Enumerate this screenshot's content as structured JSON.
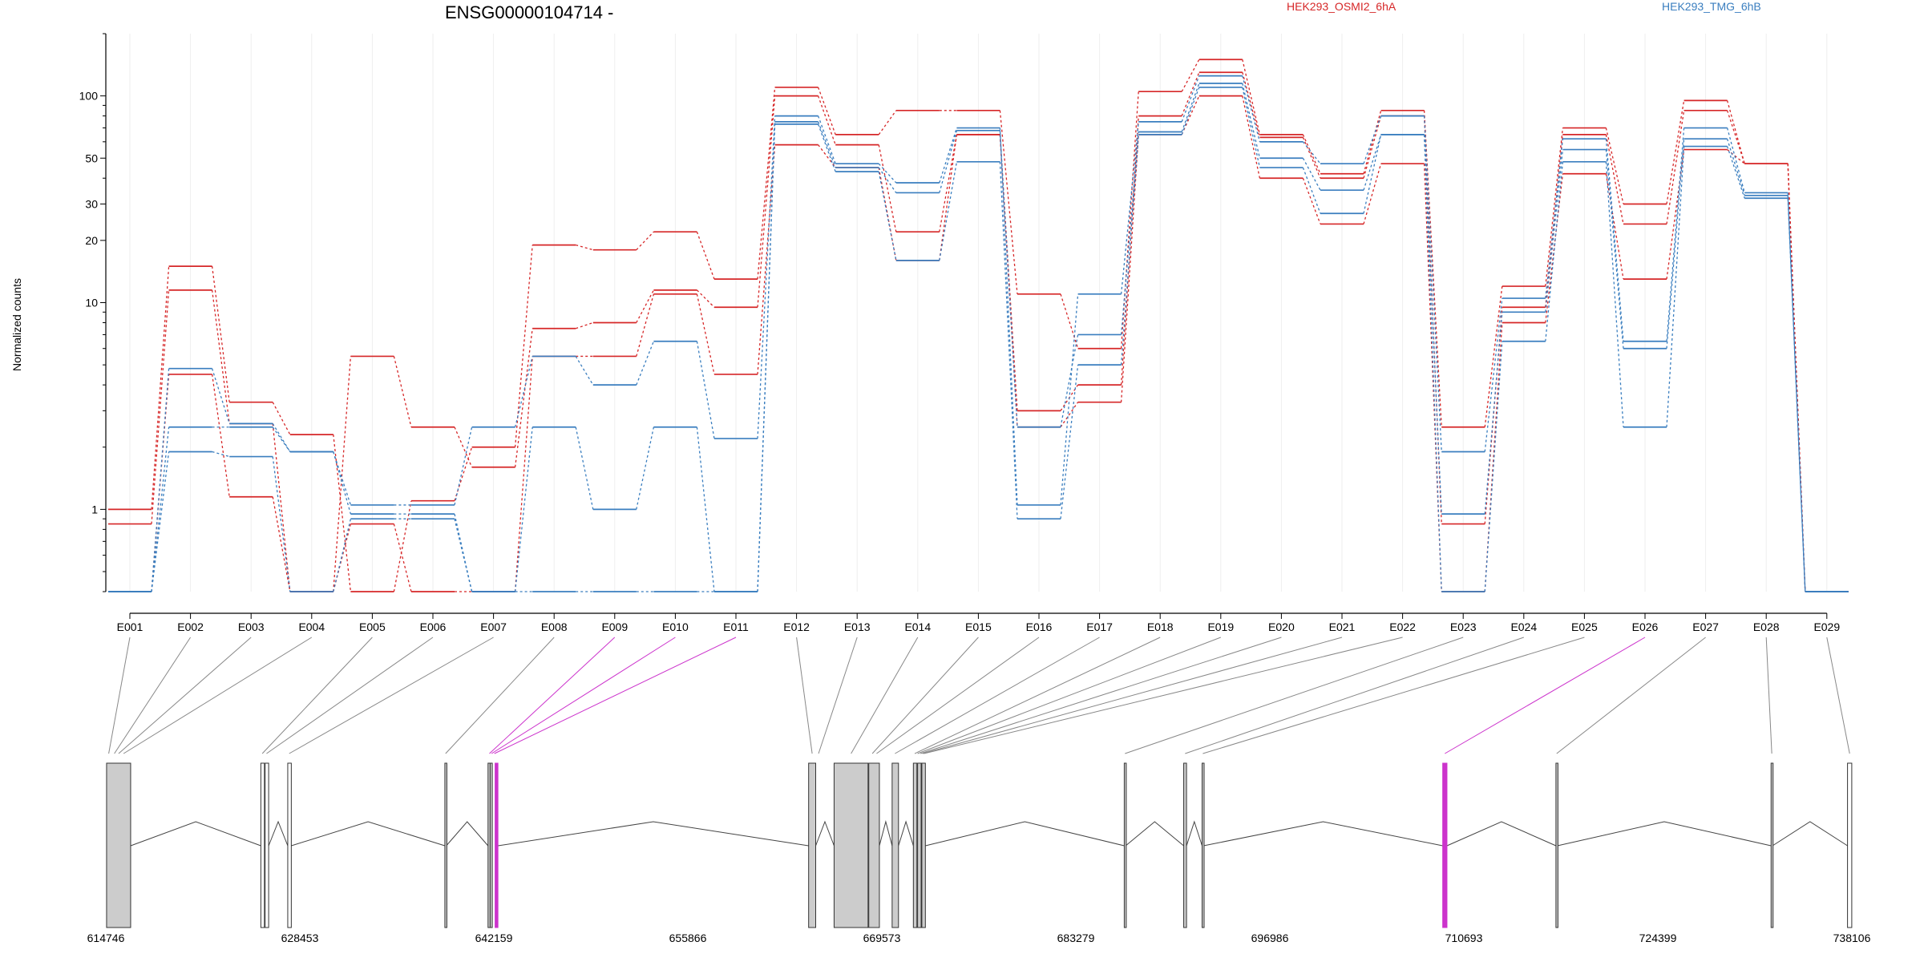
{
  "figure": {
    "title": "ENSG00000104714 -",
    "legend": [
      {
        "label": "HEK293_OSMI2_6hA",
        "color": "#d62728"
      },
      {
        "label": "HEK293_TMG_6hB",
        "color": "#3a7ebf"
      }
    ],
    "highlight_color": "#cc33cc"
  },
  "chart_data": {
    "type": "line",
    "title": "ENSG00000104714 -",
    "ylabel": "Normalized counts",
    "yscale": "log",
    "ylim": [
      0.4,
      200
    ],
    "yticks": [
      1,
      10,
      20,
      30,
      50,
      100
    ],
    "categories": [
      "E001",
      "E002",
      "E003",
      "E004",
      "E005",
      "E006",
      "E007",
      "E008",
      "E009",
      "E010",
      "E011",
      "E012",
      "E013",
      "E014",
      "E015",
      "E016",
      "E017",
      "E018",
      "E019",
      "E020",
      "E021",
      "E022",
      "E023",
      "E024",
      "E025",
      "E026",
      "E027",
      "E028",
      "E029"
    ],
    "series": [
      {
        "name": "HEK293_OSMI2_6hA",
        "color": "#d62728",
        "values": [
          1.0,
          15.0,
          3.3,
          2.3,
          0.4,
          1.1,
          2.0,
          19.0,
          18.0,
          22.0,
          13.0,
          110,
          65,
          85,
          85,
          11.0,
          6.0,
          105,
          150,
          65,
          42,
          85,
          2.5,
          12.0,
          70,
          30,
          95,
          47,
          0.4
        ]
      },
      {
        "name": "HEK293_OSMI2_6hA",
        "color": "#d62728",
        "values": [
          0.85,
          11.5,
          2.6,
          0.4,
          5.5,
          2.5,
          1.6,
          7.5,
          8.0,
          11.5,
          9.5,
          100,
          58,
          22,
          65,
          3.0,
          4.0,
          80,
          130,
          63,
          40,
          80,
          0.85,
          9.5,
          65,
          24,
          85,
          47,
          0.4
        ]
      },
      {
        "name": "HEK293_OSMI2_6hA",
        "color": "#d62728",
        "values": [
          0.4,
          4.5,
          1.15,
          0.4,
          0.85,
          0.4,
          0.4,
          5.5,
          5.5,
          11.0,
          4.5,
          58,
          45,
          16,
          65,
          2.5,
          3.3,
          65,
          100,
          40,
          24,
          47,
          0.4,
          8.0,
          42,
          13.0,
          55,
          47,
          0.4
        ]
      },
      {
        "name": "HEK293_TMG_6hB",
        "color": "#3a7ebf",
        "values": [
          0.4,
          4.8,
          2.6,
          1.9,
          1.05,
          1.05,
          2.5,
          5.5,
          4.0,
          6.5,
          2.2,
          80,
          47,
          38,
          70,
          1.05,
          11.0,
          75,
          125,
          60,
          47,
          80,
          1.9,
          10.5,
          62,
          6.5,
          70,
          34,
          0.4
        ]
      },
      {
        "name": "HEK293_TMG_6hB",
        "color": "#3a7ebf",
        "values": [
          0.4,
          2.5,
          2.5,
          1.9,
          0.95,
          0.95,
          0.4,
          2.5,
          1.0,
          2.5,
          0.4,
          75,
          45,
          34,
          68,
          2.5,
          7.0,
          67,
          115,
          50,
          35,
          65,
          0.95,
          9.0,
          55,
          6.0,
          62,
          33,
          0.4
        ]
      },
      {
        "name": "HEK293_TMG_6hB",
        "color": "#3a7ebf",
        "values": [
          0.4,
          1.9,
          1.8,
          0.4,
          0.9,
          0.9,
          0.4,
          0.4,
          0.4,
          0.4,
          0.4,
          73,
          43,
          16,
          48,
          0.9,
          5.0,
          65,
          110,
          45,
          27,
          65,
          0.4,
          6.5,
          48,
          2.5,
          57,
          32,
          0.4
        ]
      }
    ],
    "gene_model": {
      "coordinate_ticks": [
        "614746",
        "628453",
        "642159",
        "655866",
        "669573",
        "683279",
        "696986",
        "710693",
        "724399",
        "738106"
      ],
      "coordinate_range": [
        614746,
        738106
      ],
      "exons": [
        {
          "start": 614800,
          "end": 616500,
          "filled": true
        },
        {
          "start": 625700,
          "end": 625950,
          "filled": false
        },
        {
          "start": 626000,
          "end": 626250,
          "filled": false
        },
        {
          "start": 627600,
          "end": 627850,
          "filled": false
        },
        {
          "start": 638700,
          "end": 638800,
          "filled": true
        },
        {
          "start": 641750,
          "end": 641900,
          "filled": true
        },
        {
          "start": 641900,
          "end": 642050,
          "filled": true
        },
        {
          "start": 642250,
          "end": 642450,
          "filled": true,
          "highlight": true
        },
        {
          "start": 664400,
          "end": 664900,
          "filled": true
        },
        {
          "start": 666200,
          "end": 668600,
          "filled": true
        },
        {
          "start": 668650,
          "end": 669400,
          "filled": true
        },
        {
          "start": 670300,
          "end": 670750,
          "filled": true
        },
        {
          "start": 671800,
          "end": 672050,
          "filled": true
        },
        {
          "start": 672100,
          "end": 672350,
          "filled": true
        },
        {
          "start": 672400,
          "end": 672650,
          "filled": true
        },
        {
          "start": 686700,
          "end": 686800,
          "filled": true
        },
        {
          "start": 690900,
          "end": 691100,
          "filled": true
        },
        {
          "start": 692200,
          "end": 692300,
          "filled": true
        },
        {
          "start": 709200,
          "end": 709500,
          "filled": true,
          "highlight": true
        },
        {
          "start": 717200,
          "end": 717300,
          "filled": true
        },
        {
          "start": 732400,
          "end": 732500,
          "filled": true
        },
        {
          "start": 737800,
          "end": 738100,
          "filled": false
        }
      ],
      "exon_links": [
        {
          "exon": "E001",
          "pos": 614950
        },
        {
          "exon": "E002",
          "pos": 615350
        },
        {
          "exon": "E003",
          "pos": 615650
        },
        {
          "exon": "E004",
          "pos": 616000
        },
        {
          "exon": "E005",
          "pos": 625800
        },
        {
          "exon": "E006",
          "pos": 626100
        },
        {
          "exon": "E007",
          "pos": 627700
        },
        {
          "exon": "E008",
          "pos": 638750
        },
        {
          "exon": "E009",
          "pos": 641850,
          "highlight": true
        },
        {
          "exon": "E010",
          "pos": 642000,
          "highlight": true
        },
        {
          "exon": "E011",
          "pos": 642200,
          "highlight": true
        },
        {
          "exon": "E012",
          "pos": 664650
        },
        {
          "exon": "E013",
          "pos": 665100
        },
        {
          "exon": "E014",
          "pos": 667400
        },
        {
          "exon": "E015",
          "pos": 668900
        },
        {
          "exon": "E016",
          "pos": 669200
        },
        {
          "exon": "E017",
          "pos": 670500
        },
        {
          "exon": "E018",
          "pos": 671900
        },
        {
          "exon": "E019",
          "pos": 672100
        },
        {
          "exon": "E020",
          "pos": 672300
        },
        {
          "exon": "E021",
          "pos": 672450
        },
        {
          "exon": "E022",
          "pos": 672550
        },
        {
          "exon": "E023",
          "pos": 686750
        },
        {
          "exon": "E024",
          "pos": 691000
        },
        {
          "exon": "E025",
          "pos": 692250
        },
        {
          "exon": "E026",
          "pos": 709350,
          "highlight": true
        },
        {
          "exon": "E027",
          "pos": 717250
        },
        {
          "exon": "E028",
          "pos": 732450
        },
        {
          "exon": "E029",
          "pos": 737950
        }
      ]
    }
  }
}
